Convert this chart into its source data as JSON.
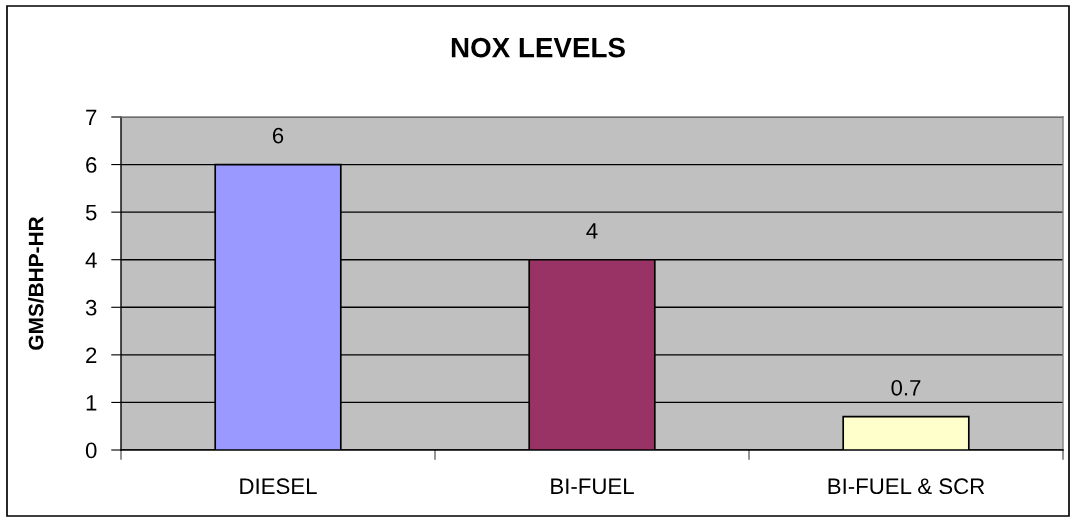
{
  "chart_data": {
    "type": "bar",
    "title": "NOX LEVELS",
    "ylabel": "GMS/BHP-HR",
    "categories": [
      "DIESEL",
      "BI-FUEL",
      "BI-FUEL & SCR"
    ],
    "values": [
      6,
      4,
      0.7
    ],
    "colors": [
      "#9999ff",
      "#993366",
      "#ffffcc"
    ],
    "ylim": [
      0,
      7
    ],
    "yticks": [
      0,
      1,
      2,
      3,
      4,
      5,
      6,
      7
    ],
    "grid": "y",
    "data_labels": true
  }
}
